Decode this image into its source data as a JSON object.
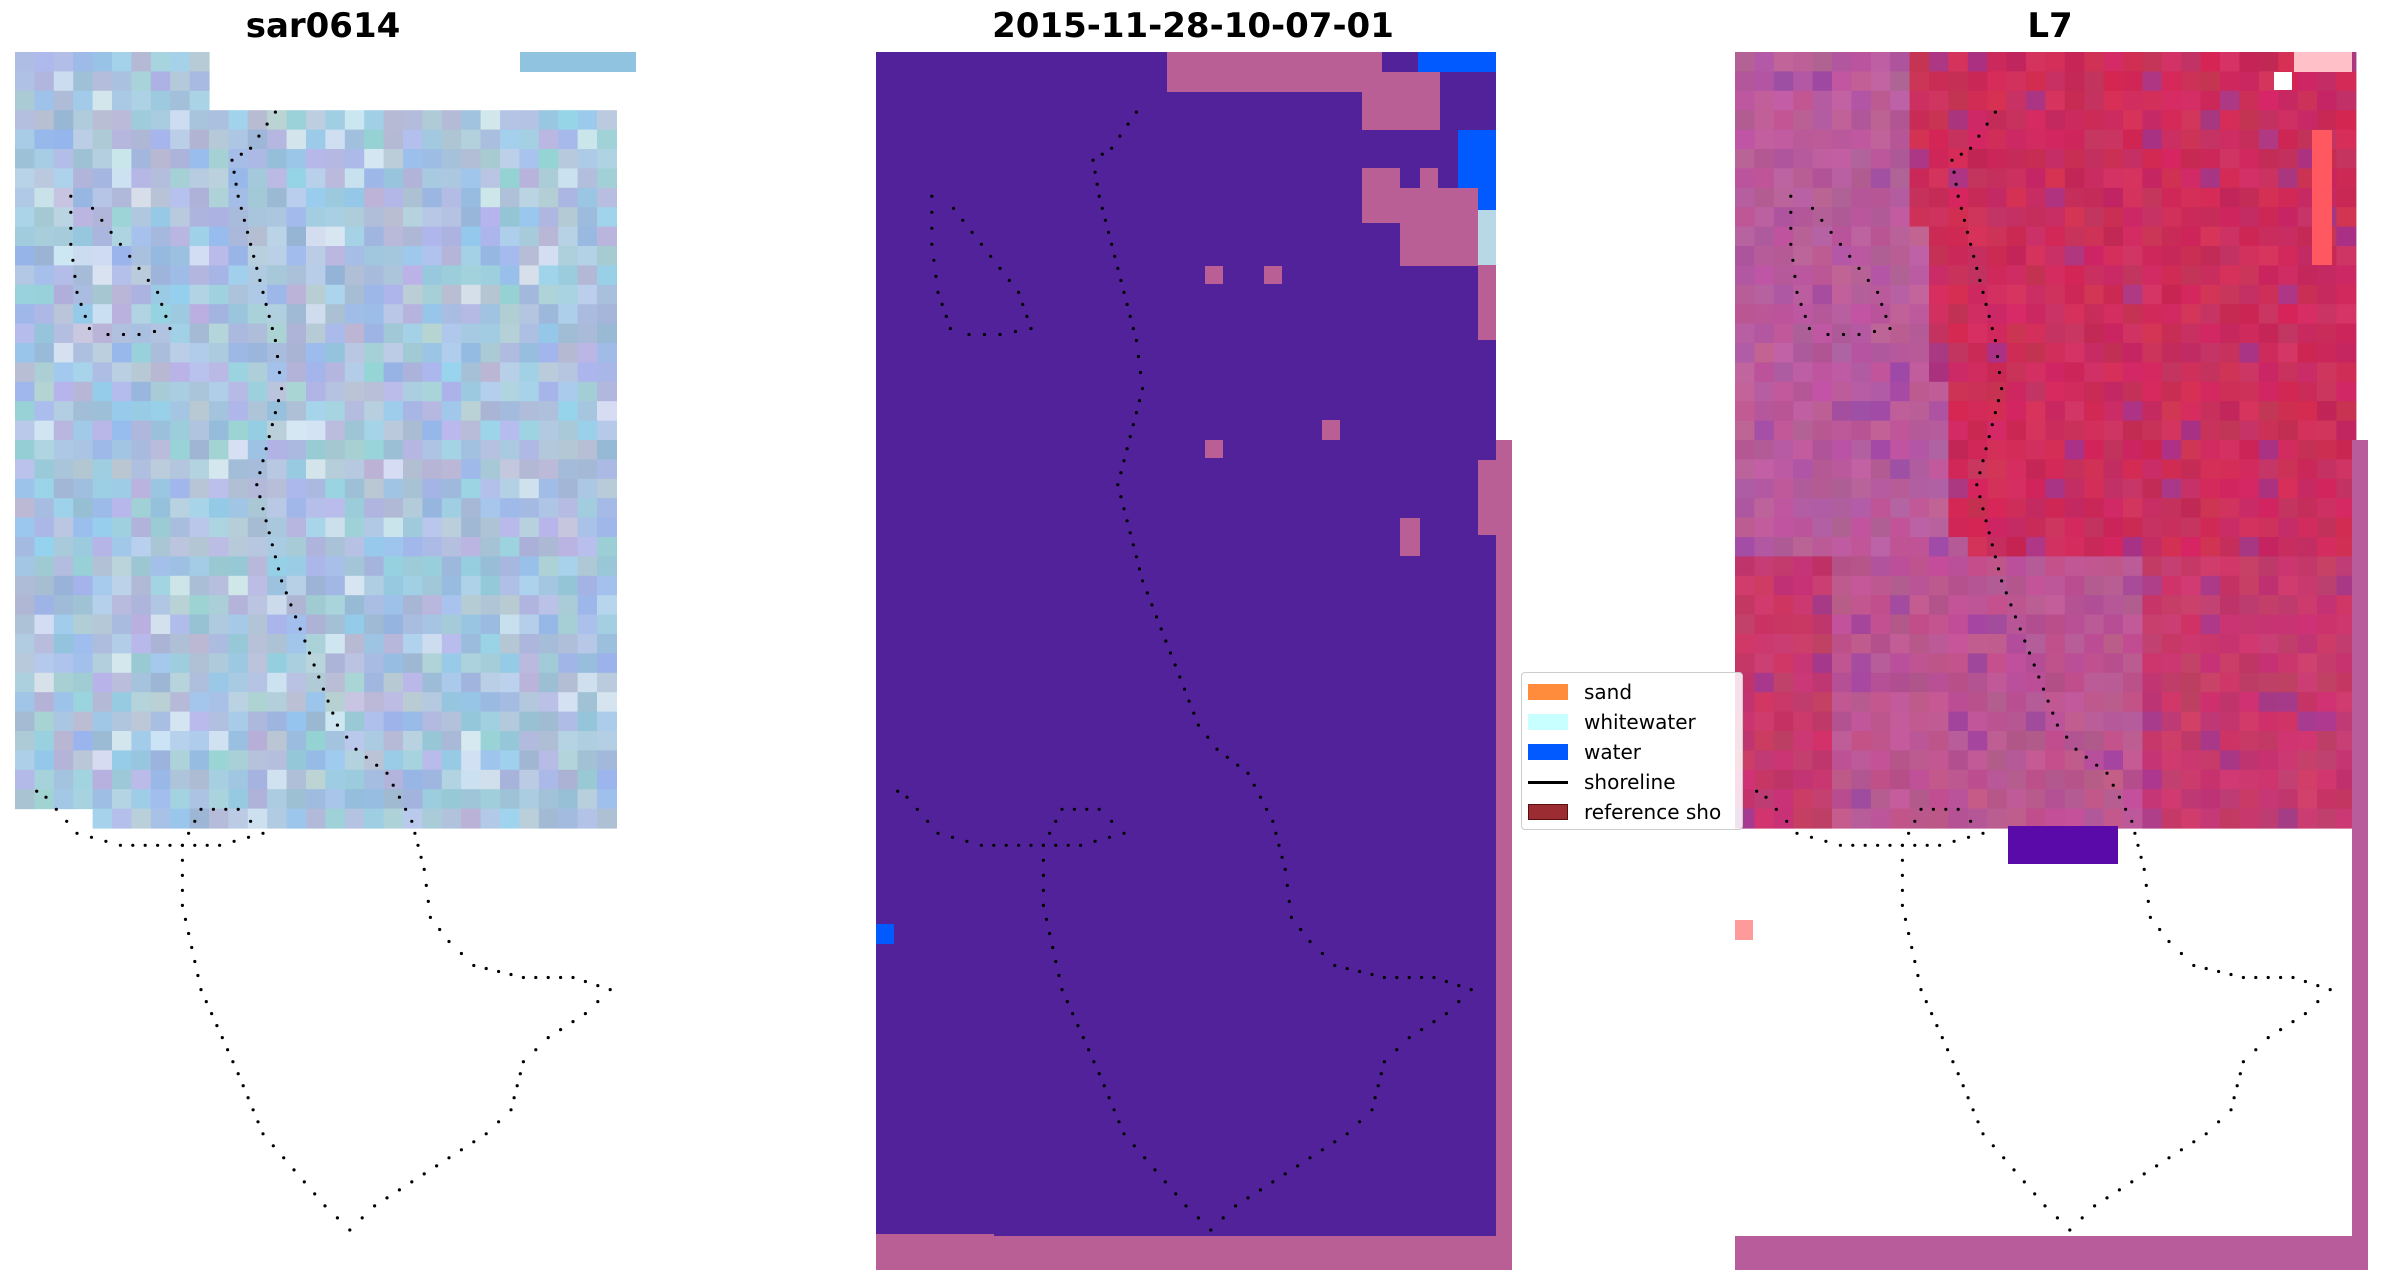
{
  "panels": [
    {
      "id": "p1",
      "title": "sar0614"
    },
    {
      "id": "p2",
      "title": "2015-11-28-10-07-01"
    },
    {
      "id": "p3",
      "title": "L7"
    }
  ],
  "legend": {
    "items": [
      {
        "label": "sand",
        "color": "#ff8c3c",
        "kind": "patch"
      },
      {
        "label": "whitewater",
        "color": "#c8ffff",
        "kind": "patch"
      },
      {
        "label": "water",
        "color": "#005aff",
        "kind": "patch"
      },
      {
        "label": "shoreline",
        "color": "#000000",
        "kind": "line"
      },
      {
        "label": "reference sho",
        "color": "#9b2d32",
        "kind": "patch"
      }
    ]
  },
  "colors": {
    "classified_background": "#52229a",
    "classified_other": "#ba5f96",
    "rgb_base": "#a8c4e0",
    "l7_base_left": "#b85c9c",
    "l7_base_right": "#cc2d5c",
    "l7_dark_patch": "#5a0aa8"
  }
}
